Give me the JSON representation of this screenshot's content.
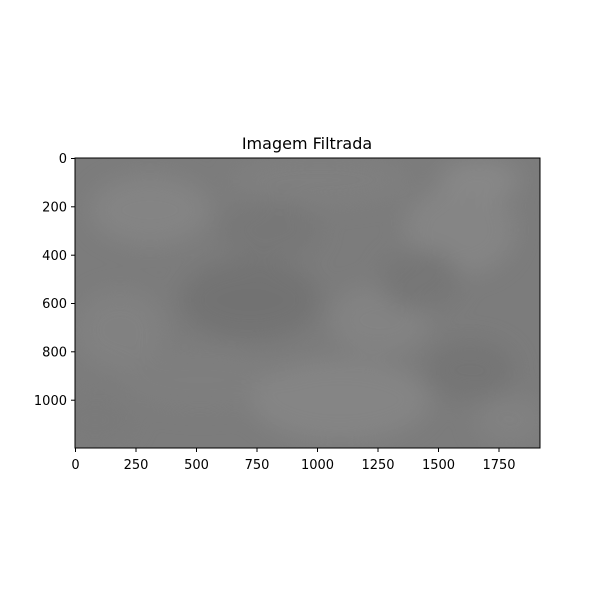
{
  "figure": {
    "title": "Imagem Filtrada"
  },
  "image_axes": {
    "x_ticks": [
      "0",
      "250",
      "500",
      "750",
      "1000",
      "1250",
      "1500",
      "1750"
    ],
    "y_ticks": [
      "0",
      "200",
      "400",
      "600",
      "800",
      "1000"
    ],
    "x_range": [
      0,
      1920
    ],
    "y_range": [
      0,
      1200
    ],
    "y_inverted": true,
    "colormap": "gray",
    "base_color": "#7a7a7a"
  }
}
